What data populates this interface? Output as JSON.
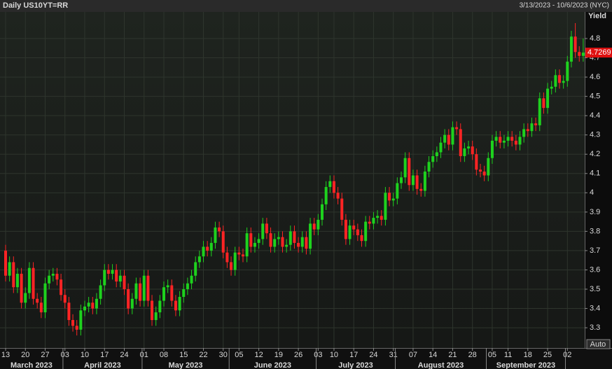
{
  "chart_data": {
    "type": "candlestick",
    "title": "Daily US10YT=RR",
    "date_range": "3/13/2023 - 10/6/2023 (NYC)",
    "y_axis_label": "Yield",
    "scale_button": "Auto",
    "up_color": "#1ed21e",
    "down_color": "#ff2424",
    "grid": true,
    "ylim": [
      3.195,
      4.938
    ],
    "yticks": [
      3.3,
      3.4,
      3.5,
      3.6,
      3.7,
      3.8,
      3.9,
      4,
      4.1,
      4.2,
      4.3,
      4.4,
      4.5,
      4.6,
      4.7,
      4.8
    ],
    "categories": [
      "2023-03-13",
      "2023-03-14",
      "2023-03-15",
      "2023-03-16",
      "2023-03-17",
      "2023-03-20",
      "2023-03-21",
      "2023-03-22",
      "2023-03-23",
      "2023-03-24",
      "2023-03-27",
      "2023-03-28",
      "2023-03-29",
      "2023-03-30",
      "2023-03-31",
      "2023-04-03",
      "2023-04-04",
      "2023-04-05",
      "2023-04-06",
      "2023-04-07",
      "2023-04-10",
      "2023-04-11",
      "2023-04-12",
      "2023-04-13",
      "2023-04-14",
      "2023-04-17",
      "2023-04-18",
      "2023-04-19",
      "2023-04-20",
      "2023-04-21",
      "2023-04-24",
      "2023-04-25",
      "2023-04-26",
      "2023-04-27",
      "2023-04-28",
      "2023-05-01",
      "2023-05-02",
      "2023-05-03",
      "2023-05-04",
      "2023-05-05",
      "2023-05-08",
      "2023-05-09",
      "2023-05-10",
      "2023-05-11",
      "2023-05-12",
      "2023-05-15",
      "2023-05-16",
      "2023-05-17",
      "2023-05-18",
      "2023-05-19",
      "2023-05-22",
      "2023-05-23",
      "2023-05-24",
      "2023-05-25",
      "2023-05-26",
      "2023-05-30",
      "2023-05-31",
      "2023-06-01",
      "2023-06-02",
      "2023-06-05",
      "2023-06-06",
      "2023-06-07",
      "2023-06-08",
      "2023-06-09",
      "2023-06-12",
      "2023-06-13",
      "2023-06-14",
      "2023-06-15",
      "2023-06-16",
      "2023-06-19",
      "2023-06-20",
      "2023-06-21",
      "2023-06-22",
      "2023-06-23",
      "2023-06-26",
      "2023-06-27",
      "2023-06-28",
      "2023-06-29",
      "2023-06-30",
      "2023-07-03",
      "2023-07-05",
      "2023-07-06",
      "2023-07-07",
      "2023-07-10",
      "2023-07-11",
      "2023-07-12",
      "2023-07-13",
      "2023-07-14",
      "2023-07-17",
      "2023-07-18",
      "2023-07-19",
      "2023-07-20",
      "2023-07-21",
      "2023-07-24",
      "2023-07-25",
      "2023-07-26",
      "2023-07-27",
      "2023-07-28",
      "2023-07-31",
      "2023-08-01",
      "2023-08-02",
      "2023-08-03",
      "2023-08-04",
      "2023-08-07",
      "2023-08-08",
      "2023-08-09",
      "2023-08-10",
      "2023-08-11",
      "2023-08-14",
      "2023-08-15",
      "2023-08-16",
      "2023-08-17",
      "2023-08-18",
      "2023-08-21",
      "2023-08-22",
      "2023-08-23",
      "2023-08-24",
      "2023-08-25",
      "2023-08-28",
      "2023-08-29",
      "2023-08-30",
      "2023-08-31",
      "2023-09-01",
      "2023-09-05",
      "2023-09-06",
      "2023-09-07",
      "2023-09-08",
      "2023-09-11",
      "2023-09-12",
      "2023-09-13",
      "2023-09-14",
      "2023-09-15",
      "2023-09-18",
      "2023-09-19",
      "2023-09-20",
      "2023-09-21",
      "2023-09-22",
      "2023-09-25",
      "2023-09-26",
      "2023-09-27",
      "2023-09-28",
      "2023-09-29",
      "2023-10-02",
      "2023-10-03",
      "2023-10-04",
      "2023-10-05",
      "2023-10-06"
    ],
    "open": [
      3.7,
      3.57,
      3.64,
      3.51,
      3.58,
      3.43,
      3.48,
      3.61,
      3.45,
      3.43,
      3.38,
      3.53,
      3.57,
      3.58,
      3.55,
      3.47,
      3.43,
      3.34,
      3.31,
      3.29,
      3.39,
      3.41,
      3.43,
      3.4,
      3.45,
      3.52,
      3.6,
      3.58,
      3.6,
      3.54,
      3.57,
      3.5,
      3.4,
      3.45,
      3.53,
      3.44,
      3.57,
      3.44,
      3.34,
      3.38,
      3.44,
      3.51,
      3.52,
      3.44,
      3.39,
      3.46,
      3.5,
      3.53,
      3.57,
      3.64,
      3.67,
      3.72,
      3.7,
      3.74,
      3.82,
      3.8,
      3.69,
      3.64,
      3.6,
      3.69,
      3.68,
      3.67,
      3.79,
      3.72,
      3.74,
      3.76,
      3.84,
      3.79,
      3.72,
      3.76,
      3.77,
      3.72,
      3.73,
      3.8,
      3.74,
      3.72,
      3.77,
      3.71,
      3.84,
      3.81,
      3.86,
      3.94,
      4.03,
      4.06,
      4.0,
      3.97,
      3.86,
      3.76,
      3.83,
      3.81,
      3.78,
      3.75,
      3.85,
      3.84,
      3.87,
      3.88,
      3.86,
      4.0,
      3.96,
      3.97,
      4.05,
      4.08,
      4.18,
      4.04,
      4.09,
      4.02,
      4.01,
      4.11,
      4.16,
      4.19,
      4.21,
      4.26,
      4.3,
      4.25,
      4.34,
      4.33,
      4.19,
      4.23,
      4.24,
      4.2,
      4.12,
      4.11,
      4.09,
      4.18,
      4.27,
      4.29,
      4.26,
      4.27,
      4.29,
      4.27,
      4.25,
      4.29,
      4.33,
      4.32,
      4.36,
      4.35,
      4.49,
      4.44,
      4.54,
      4.55,
      4.61,
      4.57,
      4.58,
      4.68,
      4.81,
      4.73,
      4.71
    ],
    "high": [
      3.73,
      3.67,
      3.67,
      3.61,
      3.61,
      3.51,
      3.64,
      3.64,
      3.48,
      3.46,
      3.56,
      3.6,
      3.61,
      3.61,
      3.58,
      3.5,
      3.46,
      3.37,
      3.34,
      3.42,
      3.44,
      3.46,
      3.46,
      3.48,
      3.55,
      3.63,
      3.63,
      3.63,
      3.63,
      3.6,
      3.6,
      3.53,
      3.48,
      3.56,
      3.56,
      3.6,
      3.6,
      3.47,
      3.41,
      3.47,
      3.54,
      3.55,
      3.55,
      3.47,
      3.49,
      3.53,
      3.56,
      3.6,
      3.67,
      3.7,
      3.75,
      3.75,
      3.77,
      3.85,
      3.85,
      3.83,
      3.72,
      3.67,
      3.72,
      3.72,
      3.71,
      3.82,
      3.82,
      3.77,
      3.79,
      3.87,
      3.87,
      3.82,
      3.79,
      3.8,
      3.8,
      3.76,
      3.83,
      3.83,
      3.77,
      3.8,
      3.8,
      3.87,
      3.87,
      3.89,
      3.97,
      4.06,
      4.09,
      4.09,
      4.03,
      4.0,
      3.89,
      3.86,
      3.86,
      3.84,
      3.81,
      3.88,
      3.88,
      3.9,
      3.91,
      3.91,
      4.03,
      4.03,
      4.0,
      4.08,
      4.11,
      4.21,
      4.21,
      4.12,
      4.12,
      4.05,
      4.14,
      4.19,
      4.22,
      4.24,
      4.29,
      4.33,
      4.33,
      4.37,
      4.37,
      4.36,
      4.26,
      4.27,
      4.27,
      4.23,
      4.15,
      4.14,
      4.21,
      4.3,
      4.32,
      4.32,
      4.3,
      4.32,
      4.32,
      4.3,
      4.32,
      4.36,
      4.36,
      4.39,
      4.39,
      4.52,
      4.52,
      4.57,
      4.58,
      4.64,
      4.64,
      4.61,
      4.71,
      4.84,
      4.88,
      4.76,
      4.8
    ],
    "low": [
      3.54,
      3.54,
      3.48,
      3.48,
      3.4,
      3.4,
      3.45,
      3.42,
      3.4,
      3.35,
      3.35,
      3.5,
      3.54,
      3.52,
      3.44,
      3.4,
      3.31,
      3.28,
      3.26,
      3.26,
      3.36,
      3.38,
      3.37,
      3.37,
      3.42,
      3.49,
      3.55,
      3.55,
      3.51,
      3.51,
      3.47,
      3.37,
      3.37,
      3.42,
      3.41,
      3.41,
      3.41,
      3.31,
      3.31,
      3.35,
      3.41,
      3.48,
      3.41,
      3.36,
      3.36,
      3.43,
      3.47,
      3.5,
      3.54,
      3.61,
      3.64,
      3.67,
      3.67,
      3.71,
      3.77,
      3.66,
      3.61,
      3.57,
      3.57,
      3.65,
      3.64,
      3.64,
      3.69,
      3.69,
      3.71,
      3.73,
      3.76,
      3.69,
      3.69,
      3.73,
      3.69,
      3.69,
      3.7,
      3.71,
      3.69,
      3.69,
      3.68,
      3.68,
      3.78,
      3.78,
      3.83,
      3.91,
      4.0,
      3.97,
      3.94,
      3.83,
      3.73,
      3.73,
      3.78,
      3.75,
      3.72,
      3.72,
      3.81,
      3.81,
      3.84,
      3.83,
      3.83,
      3.93,
      3.93,
      3.94,
      4.02,
      4.05,
      4.01,
      4.01,
      3.99,
      3.98,
      3.98,
      4.08,
      4.13,
      4.16,
      4.18,
      4.23,
      4.22,
      4.22,
      4.3,
      4.16,
      4.16,
      4.2,
      4.17,
      4.09,
      4.08,
      4.06,
      4.06,
      4.15,
      4.24,
      4.23,
      4.23,
      4.24,
      4.24,
      4.22,
      4.22,
      4.26,
      4.29,
      4.29,
      4.32,
      4.32,
      4.41,
      4.41,
      4.51,
      4.52,
      4.54,
      4.54,
      4.55,
      4.65,
      4.7,
      4.68,
      4.68
    ],
    "close": [
      3.57,
      3.64,
      3.51,
      3.58,
      3.43,
      3.48,
      3.61,
      3.45,
      3.43,
      3.38,
      3.53,
      3.57,
      3.58,
      3.55,
      3.47,
      3.43,
      3.34,
      3.31,
      3.29,
      3.39,
      3.41,
      3.43,
      3.4,
      3.45,
      3.52,
      3.6,
      3.58,
      3.6,
      3.54,
      3.57,
      3.5,
      3.4,
      3.45,
      3.53,
      3.44,
      3.57,
      3.44,
      3.34,
      3.38,
      3.44,
      3.51,
      3.52,
      3.44,
      3.39,
      3.46,
      3.5,
      3.53,
      3.57,
      3.64,
      3.67,
      3.72,
      3.7,
      3.74,
      3.82,
      3.8,
      3.69,
      3.64,
      3.6,
      3.69,
      3.68,
      3.67,
      3.79,
      3.72,
      3.74,
      3.76,
      3.84,
      3.79,
      3.72,
      3.76,
      3.77,
      3.72,
      3.73,
      3.8,
      3.74,
      3.72,
      3.77,
      3.71,
      3.84,
      3.81,
      3.86,
      3.94,
      4.03,
      4.06,
      4.0,
      3.97,
      3.86,
      3.76,
      3.83,
      3.81,
      3.78,
      3.75,
      3.85,
      3.84,
      3.87,
      3.88,
      3.86,
      4.0,
      3.96,
      3.97,
      4.05,
      4.08,
      4.18,
      4.04,
      4.09,
      4.02,
      4.01,
      4.11,
      4.16,
      4.19,
      4.21,
      4.26,
      4.3,
      4.25,
      4.34,
      4.33,
      4.19,
      4.23,
      4.24,
      4.2,
      4.12,
      4.11,
      4.09,
      4.18,
      4.27,
      4.29,
      4.26,
      4.27,
      4.29,
      4.27,
      4.25,
      4.29,
      4.33,
      4.32,
      4.36,
      4.35,
      4.49,
      4.44,
      4.54,
      4.55,
      4.61,
      4.57,
      4.58,
      4.68,
      4.81,
      4.73,
      4.71,
      4.7269
    ],
    "xticks": [
      {
        "value": "2023-03-13",
        "label": "13"
      },
      {
        "value": "2023-03-20",
        "label": "20"
      },
      {
        "value": "2023-03-27",
        "label": "27"
      },
      {
        "value": "2023-04-03",
        "label": "03"
      },
      {
        "value": "2023-04-10",
        "label": "10"
      },
      {
        "value": "2023-04-17",
        "label": "17"
      },
      {
        "value": "2023-04-24",
        "label": "24"
      },
      {
        "value": "2023-05-01",
        "label": "01"
      },
      {
        "value": "2023-05-08",
        "label": "08"
      },
      {
        "value": "2023-05-15",
        "label": "15"
      },
      {
        "value": "2023-05-22",
        "label": "22"
      },
      {
        "value": "2023-05-30",
        "label": "30"
      },
      {
        "value": "2023-06-05",
        "label": "05"
      },
      {
        "value": "2023-06-12",
        "label": "12"
      },
      {
        "value": "2023-06-19",
        "label": "19"
      },
      {
        "value": "2023-06-26",
        "label": "26"
      },
      {
        "value": "2023-07-03",
        "label": "03"
      },
      {
        "value": "2023-07-10",
        "label": "10"
      },
      {
        "value": "2023-07-17",
        "label": "17"
      },
      {
        "value": "2023-07-24",
        "label": "24"
      },
      {
        "value": "2023-07-31",
        "label": "31"
      },
      {
        "value": "2023-08-07",
        "label": "07"
      },
      {
        "value": "2023-08-14",
        "label": "14"
      },
      {
        "value": "2023-08-21",
        "label": "21"
      },
      {
        "value": "2023-08-28",
        "label": "28"
      },
      {
        "value": "2023-09-05",
        "label": "05"
      },
      {
        "value": "2023-09-11",
        "label": "11"
      },
      {
        "value": "2023-09-18",
        "label": "18"
      },
      {
        "value": "2023-09-25",
        "label": "25"
      },
      {
        "value": "2023-10-02",
        "label": "02"
      }
    ],
    "month_ticks": [
      {
        "value": "2023-03-13",
        "label": "March 2023"
      },
      {
        "value": "2023-04-03",
        "label": "April 2023"
      },
      {
        "value": "2023-05-01",
        "label": "May 2023"
      },
      {
        "value": "2023-06-01",
        "label": "June 2023"
      },
      {
        "value": "2023-07-03",
        "label": "July 2023"
      },
      {
        "value": "2023-08-01",
        "label": "August 2023"
      },
      {
        "value": "2023-09-01",
        "label": "September 2023"
      },
      {
        "value": "2023-10-02"
      }
    ]
  }
}
